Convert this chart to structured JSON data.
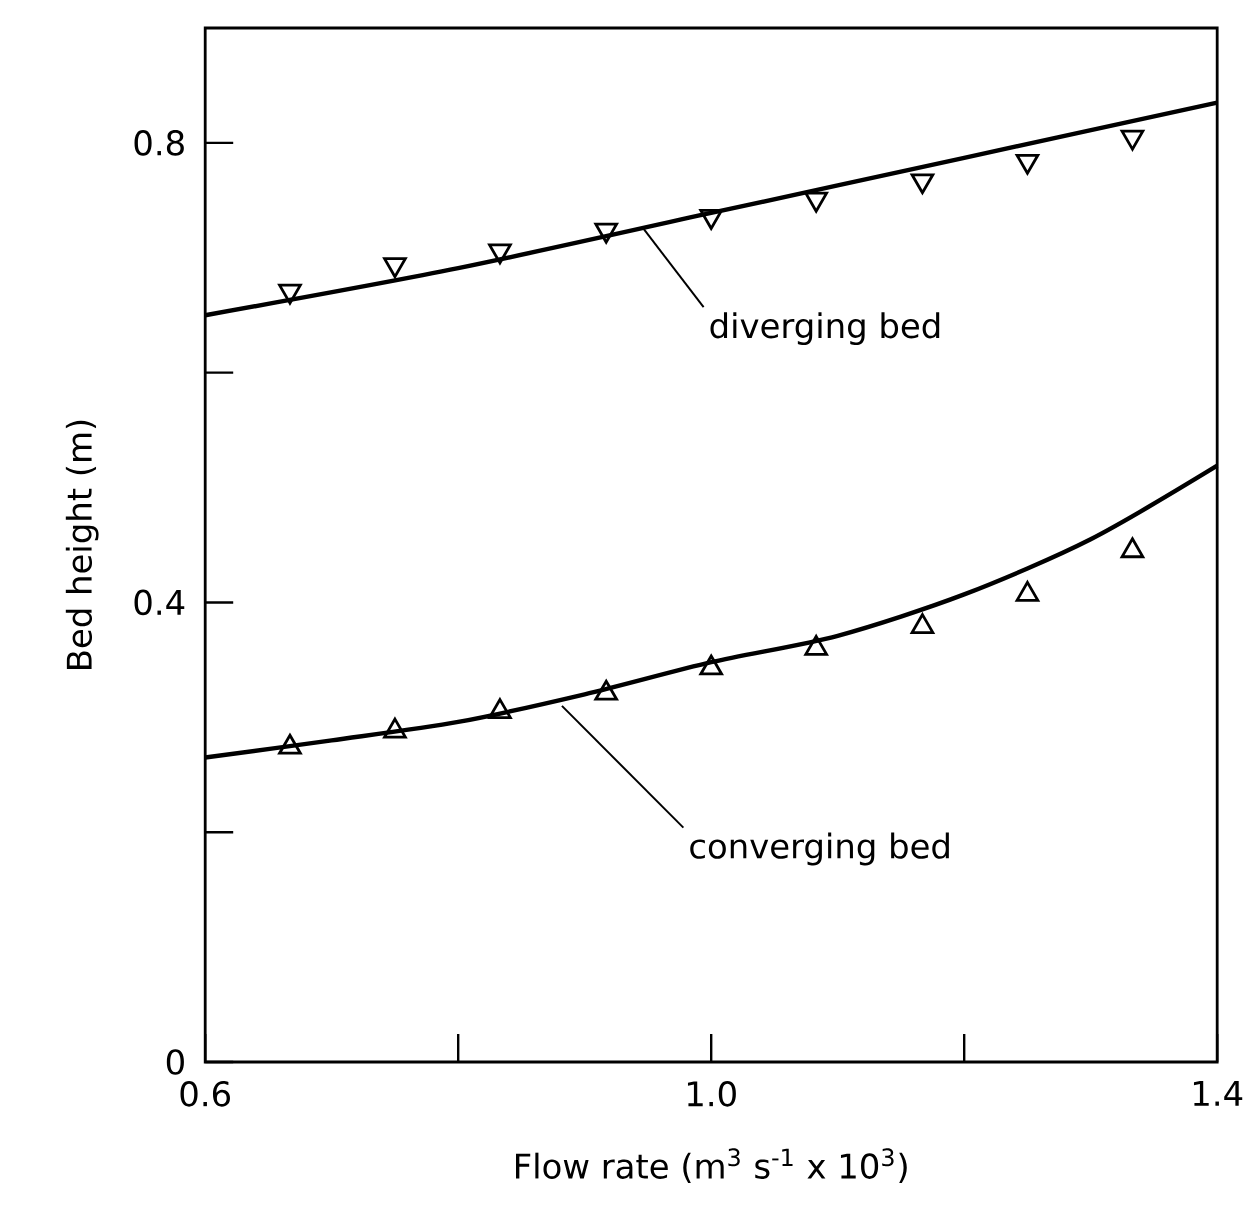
{
  "chart_data": {
    "type": "scatter",
    "xlabel": "Flow rate (m$^{3}$ s$^{-1}$ x 10$^{3}$)",
    "ylabel": "Bed height (m)",
    "xlim": [
      0.6,
      1.4
    ],
    "ylim": [
      0,
      0.9
    ],
    "xticks": [
      0.6,
      {
        "value": 0.8,
        "label": null
      },
      {
        "value": 1.0,
        "label": "1.0"
      },
      {
        "value": 1.2,
        "label": null
      },
      1.4
    ],
    "yticks": [
      0,
      {
        "value": 0.2,
        "label": null
      },
      0.4,
      {
        "value": 0.6,
        "label": null
      },
      0.8
    ],
    "grid": false,
    "series": [
      {
        "marker": "triangle_down",
        "color": "#000000",
        "x": [
          0.667,
          0.75,
          0.833,
          0.917,
          1.0,
          1.083,
          1.167,
          1.25,
          1.333
        ],
        "values": [
          0.671,
          0.694,
          0.706,
          0.724,
          0.736,
          0.751,
          0.767,
          0.784,
          0.805
        ]
      },
      {
        "marker": "triangle",
        "color": "#000000",
        "x": [
          0.667,
          0.75,
          0.833,
          0.917,
          1.0,
          1.083,
          1.167,
          1.25,
          1.333
        ],
        "values": [
          0.274,
          0.288,
          0.305,
          0.321,
          0.343,
          0.36,
          0.379,
          0.407,
          0.445
        ]
      },
      {
        "type": "line",
        "marker": "none",
        "line_style": "solid",
        "color": "#000000",
        "x": [
          0.6,
          0.8,
          1.0,
          1.2,
          1.4
        ],
        "values": [
          0.65,
          0.691,
          0.739,
          0.787,
          0.835
        ]
      },
      {
        "type": "line",
        "marker": "none",
        "line_style": "solid",
        "color": "#000000",
        "x": [
          0.6,
          0.7,
          0.8,
          0.9,
          1.0,
          1.1,
          1.2,
          1.3,
          1.4
        ],
        "values": [
          0.265,
          0.28,
          0.296,
          0.32,
          0.348,
          0.371,
          0.407,
          0.455,
          0.519
        ]
      }
    ],
    "annotations": [
      {
        "text": "diverging bed",
        "x": 0.946,
        "y": 0.726
      },
      {
        "text": "converging bed",
        "x": 0.882,
        "y": 0.31
      }
    ]
  }
}
